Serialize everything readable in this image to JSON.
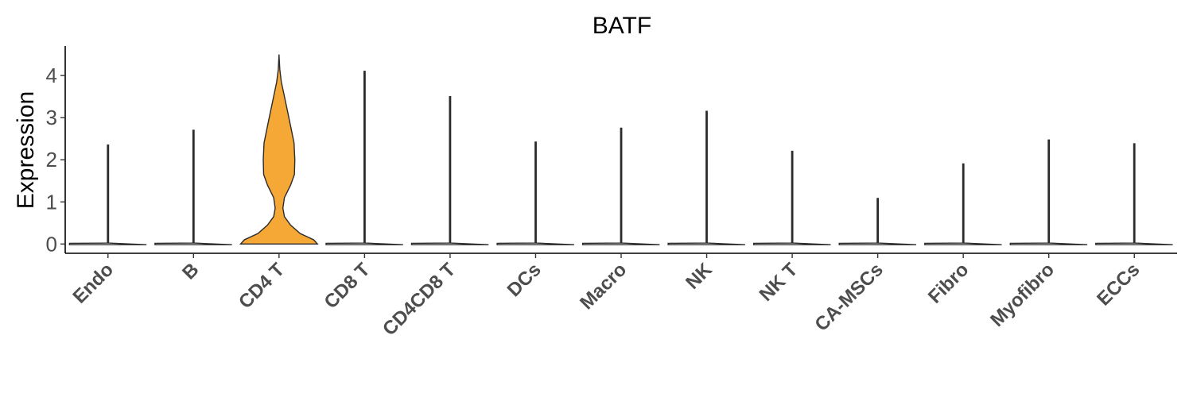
{
  "chart_data": {
    "type": "violin",
    "title": "BATF",
    "ylabel": "Expression",
    "xlabel": "",
    "ylim": [
      -0.22,
      4.7
    ],
    "yticks": [
      0,
      1,
      2,
      3,
      4
    ],
    "grid": false,
    "legend": "none",
    "categories": [
      "Endo",
      "B",
      "CD4 T",
      "CD8 T",
      "CD4CD8 T",
      "DCs",
      "Macro",
      "NK",
      "NK T",
      "CA-MSCs",
      "Fibro",
      "Myofibro",
      "ECCs"
    ],
    "max_values": [
      2.35,
      2.7,
      4.5,
      4.1,
      3.5,
      2.42,
      2.75,
      3.15,
      2.2,
      1.08,
      1.9,
      2.47,
      2.38
    ],
    "colors": {
      "highlight": "#F5A836",
      "default": "#ffffff",
      "outline": "#2b2b2b"
    },
    "highlight_category": "CD4 T",
    "highlight_density_profile": [
      {
        "y": 0.0,
        "width": 1.0
      },
      {
        "y": 0.1,
        "width": 0.9
      },
      {
        "y": 0.25,
        "width": 0.55
      },
      {
        "y": 0.45,
        "width": 0.3
      },
      {
        "y": 0.65,
        "width": 0.14
      },
      {
        "y": 0.85,
        "width": 0.1
      },
      {
        "y": 1.1,
        "width": 0.14
      },
      {
        "y": 1.4,
        "width": 0.3
      },
      {
        "y": 1.65,
        "width": 0.4
      },
      {
        "y": 2.0,
        "width": 0.41
      },
      {
        "y": 2.4,
        "width": 0.39
      },
      {
        "y": 2.8,
        "width": 0.3
      },
      {
        "y": 3.2,
        "width": 0.21
      },
      {
        "y": 3.55,
        "width": 0.13
      },
      {
        "y": 3.85,
        "width": 0.06
      },
      {
        "y": 4.15,
        "width": 0.02
      },
      {
        "y": 4.5,
        "width": 0.0
      }
    ]
  }
}
